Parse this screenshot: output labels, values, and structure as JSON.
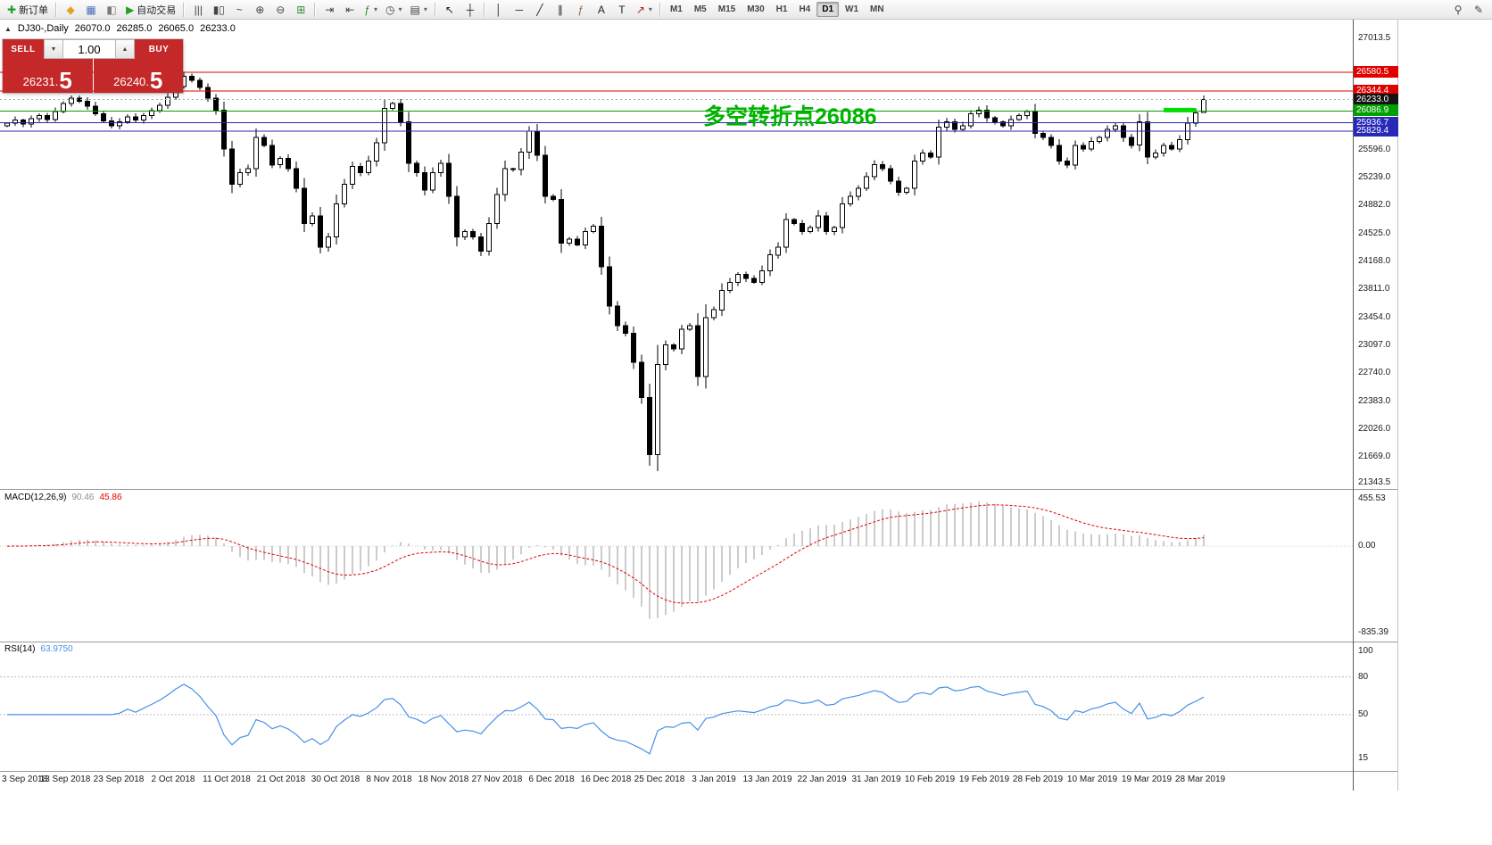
{
  "toolbar": {
    "items": [
      {
        "kind": "button",
        "name": "new-order",
        "glyph": "✚",
        "glyph_color": "#1d9e33",
        "label": "新订单"
      },
      {
        "kind": "sep"
      },
      {
        "kind": "icon",
        "name": "profiles",
        "glyph": "◆",
        "glyph_color": "#e0a21f"
      },
      {
        "kind": "icon",
        "name": "market-watch",
        "glyph": "▦",
        "glyph_color": "#4a72b8"
      },
      {
        "kind": "icon",
        "name": "data-window",
        "glyph": "◧",
        "glyph_color": "#7a7a7a"
      },
      {
        "kind": "button",
        "name": "auto-trading",
        "glyph": "▶",
        "glyph_color": "#21a121",
        "label": "自动交易"
      },
      {
        "kind": "sep"
      },
      {
        "kind": "icon",
        "name": "bar-chart",
        "glyph": "|||",
        "glyph_color": "#444444"
      },
      {
        "kind": "icon",
        "name": "candlestick-chart",
        "glyph": "▮▯",
        "glyph_color": "#444444"
      },
      {
        "kind": "icon",
        "name": "line-chart",
        "glyph": "~",
        "glyph_color": "#444444"
      },
      {
        "kind": "icon",
        "name": "zoom-in",
        "glyph": "⊕",
        "glyph_color": "#444444"
      },
      {
        "kind": "icon",
        "name": "zoom-out",
        "glyph": "⊖",
        "glyph_color": "#444444"
      },
      {
        "kind": "icon",
        "name": "tile-windows",
        "glyph": "⊞",
        "glyph_color": "#2c8f2c"
      },
      {
        "kind": "sep"
      },
      {
        "kind": "icon",
        "name": "auto-scroll",
        "glyph": "⇥",
        "glyph_color": "#444444"
      },
      {
        "kind": "icon",
        "name": "chart-shift",
        "glyph": "⇤",
        "glyph_color": "#444444"
      },
      {
        "kind": "dropdown",
        "name": "indicators",
        "glyph": "ƒ",
        "glyph_color": "#2c8f2c",
        "caret": true
      },
      {
        "kind": "dropdown",
        "name": "periods",
        "glyph": "◷",
        "glyph_color": "#444444",
        "caret": true
      },
      {
        "kind": "dropdown",
        "name": "templates",
        "glyph": "▤",
        "glyph_color": "#444444",
        "caret": true
      },
      {
        "kind": "sep"
      },
      {
        "kind": "icon",
        "name": "cursor",
        "glyph": "↖",
        "glyph_color": "#222222"
      },
      {
        "kind": "icon",
        "name": "crosshair",
        "glyph": "┼",
        "glyph_color": "#222222"
      },
      {
        "kind": "sep"
      },
      {
        "kind": "icon",
        "name": "vertical-line",
        "glyph": "│",
        "glyph_color": "#222222"
      },
      {
        "kind": "icon",
        "name": "horizontal-line",
        "glyph": "─",
        "glyph_color": "#222222"
      },
      {
        "kind": "icon",
        "name": "trendline",
        "glyph": "╱",
        "glyph_color": "#222222"
      },
      {
        "kind": "icon",
        "name": "equidistant-channel",
        "glyph": "∥",
        "glyph_color": "#222222"
      },
      {
        "kind": "icon",
        "name": "fibonacci-retracement",
        "glyph": "ƒ",
        "glyph_color": "#8a6d3b"
      },
      {
        "kind": "icon",
        "name": "text",
        "glyph": "A",
        "glyph_color": "#222222"
      },
      {
        "kind": "icon",
        "name": "text-label",
        "glyph": "T",
        "glyph_color": "#222222"
      },
      {
        "kind": "dropdown",
        "name": "arrows",
        "glyph": "↗",
        "glyph_color": "#b02020",
        "caret": true
      },
      {
        "kind": "sep"
      },
      {
        "kind": "tf",
        "name": "timeframe-m1",
        "label": "M1"
      },
      {
        "kind": "tf",
        "name": "timeframe-m5",
        "label": "M5"
      },
      {
        "kind": "tf",
        "name": "timeframe-m15",
        "label": "M15"
      },
      {
        "kind": "tf",
        "name": "timeframe-m30",
        "label": "M30"
      },
      {
        "kind": "tf",
        "name": "timeframe-h1",
        "label": "H1"
      },
      {
        "kind": "tf",
        "name": "timeframe-h4",
        "label": "H4"
      },
      {
        "kind": "tf",
        "name": "timeframe-d1",
        "label": "D1",
        "active": true
      },
      {
        "kind": "tf",
        "name": "timeframe-w1",
        "label": "W1"
      },
      {
        "kind": "tf",
        "name": "timeframe-mn",
        "label": "MN"
      },
      {
        "kind": "icon",
        "name": "search",
        "glyph": "⚲",
        "glyph_color": "#444444",
        "right": true
      },
      {
        "kind": "icon",
        "name": "quick-edit",
        "glyph": "✎",
        "glyph_color": "#444444"
      }
    ]
  },
  "chart_header": {
    "toggle_glyph": "▲",
    "symbol_period": "DJ30-,Daily",
    "open": "26070.0",
    "high": "26285.0",
    "low": "26065.0",
    "close": "26233.0"
  },
  "trade_panel": {
    "sell_label": "SELL",
    "buy_label": "BUY",
    "volume": "1.00",
    "volume_down_glyph": "▼",
    "volume_up_glyph": "▲",
    "sell_price_main": "26231.",
    "sell_price_pip": "5",
    "buy_price_main": "26240.",
    "buy_price_pip": "5",
    "panel_color": "#c42828"
  },
  "main_chart": {
    "annotation": {
      "text": "多空转折点26086",
      "color": "#00b400"
    }
  },
  "indicators": {
    "macd": {
      "label": "MACD(12,26,9)",
      "value_main": "90.46",
      "value_signal": "45.86"
    },
    "rsi": {
      "label": "RSI(14)",
      "value": "63.9750"
    }
  },
  "chart_data": {
    "type": "candlestick",
    "symbol": "DJ30-",
    "period": "Daily",
    "x_dates": [
      "3 Sep 2018",
      "13 Sep 2018",
      "23 Sep 2018",
      "2 Oct 2018",
      "11 Oct 2018",
      "21 Oct 2018",
      "30 Oct 2018",
      "8 Nov 2018",
      "18 Nov 2018",
      "27 Nov 2018",
      "6 Dec 2018",
      "16 Dec 2018",
      "25 Dec 2018",
      "3 Jan 2019",
      "13 Jan 2019",
      "22 Jan 2019",
      "31 Jan 2019",
      "10 Feb 2019",
      "19 Feb 2019",
      "28 Feb 2019",
      "10 Mar 2019",
      "19 Mar 2019",
      "28 Mar 2019"
    ],
    "main": {
      "ylim": [
        21264,
        27253
      ],
      "axis_labels": [
        27013.5,
        25596.0,
        25239.0,
        24882.0,
        24525.0,
        24168.0,
        23811.0,
        23454.0,
        23097.0,
        22740.0,
        22383.0,
        22026.0,
        21669.0,
        21343.5
      ]
    },
    "candles": {
      "bull_color": "#ffffff",
      "bear_color": "#000000",
      "outline_color": "#000000",
      "first_open": 25900,
      "last_ohlc": [
        26070.0,
        26285.0,
        26065.0,
        26233.0
      ],
      "closes": [
        25930,
        25970,
        25920,
        25990,
        26030,
        25980,
        26080,
        26180,
        26250,
        26210,
        26150,
        26050,
        25960,
        25900,
        25950,
        26010,
        25970,
        26030,
        26090,
        26160,
        26260,
        26400,
        26530,
        26480,
        26390,
        26250,
        26100,
        25600,
        25150,
        25300,
        25350,
        25750,
        25650,
        25400,
        25480,
        25350,
        25100,
        24650,
        24750,
        24350,
        24480,
        24900,
        25150,
        25380,
        25300,
        25450,
        25680,
        26120,
        26180,
        25950,
        25420,
        25300,
        25080,
        25300,
        25420,
        25000,
        24480,
        24550,
        24480,
        24300,
        24650,
        25020,
        25350,
        25340,
        25560,
        25830,
        25520,
        25000,
        24960,
        24400,
        24450,
        24380,
        24550,
        24620,
        24100,
        23600,
        23350,
        23250,
        22880,
        22430,
        21700,
        22850,
        23100,
        23050,
        23300,
        23350,
        22700,
        23450,
        23550,
        23800,
        23900,
        24000,
        23950,
        23900,
        24050,
        24250,
        24350,
        24700,
        24650,
        24550,
        24600,
        24750,
        24550,
        24600,
        24900,
        25000,
        25100,
        25250,
        25400,
        25350,
        25190,
        25050,
        25100,
        25450,
        25550,
        25500,
        25880,
        25950,
        25850,
        25900,
        26050,
        26100,
        26000,
        25950,
        25900,
        25980,
        26030,
        26080,
        25800,
        25750,
        25650,
        25450,
        25400,
        25650,
        25600,
        25700,
        25750,
        25850,
        25900,
        25750,
        25650,
        25950,
        25500,
        25550,
        25650,
        25600,
        25720,
        25930,
        26065,
        26233
      ]
    },
    "hlines": [
      {
        "price": 26580.5,
        "label": "26580.5",
        "line_color": "#e00000",
        "badge_color": "#e00000",
        "dashed": false
      },
      {
        "price": 26344.4,
        "label": "26344.4",
        "line_color": "#e00000",
        "badge_color": "#e00000",
        "dashed": false
      },
      {
        "price": 26233.0,
        "label": "26233.0",
        "line_color": "#a8a8a8",
        "badge_color": "#141414",
        "dashed": true
      },
      {
        "price": 26086.9,
        "label": "26086.9",
        "line_color": "#00a000",
        "badge_color": "#00a000",
        "dashed": false
      },
      {
        "price": 25936.7,
        "label": "25936.7",
        "line_color": "#2929b8",
        "badge_color": "#2929b8",
        "dashed": false
      },
      {
        "price": 25829.4,
        "label": "25829.4",
        "line_color": "#2929b8",
        "badge_color": "#2929b8",
        "dashed": false
      }
    ],
    "highlight_segment": {
      "from_index": 144,
      "to_index": 148,
      "price": 26086.9,
      "color": "#00dd00",
      "width": 5
    },
    "macd": {
      "params": [
        12,
        26,
        9
      ],
      "current_values": [
        90.46,
        45.86
      ],
      "ylim": [
        -900,
        520
      ],
      "histogram_color": "#b6b6b6",
      "signal_color": "#e00000",
      "axis_labels": [
        {
          "value": 455.53,
          "label": "455.53"
        },
        {
          "value": 0,
          "label": "0.00"
        },
        {
          "value": -835.39,
          "label": "-835.39"
        }
      ]
    },
    "rsi": {
      "period": 14,
      "current_value": 63.975,
      "ylim": [
        8,
        106
      ],
      "line_color": "#4790e8",
      "levels": [
        80,
        50
      ],
      "axis_labels": [
        {
          "value": 100,
          "label": "100"
        },
        {
          "value": 80,
          "label": "80"
        },
        {
          "value": 50,
          "label": "50"
        },
        {
          "value": 15,
          "label": "15"
        }
      ]
    }
  }
}
